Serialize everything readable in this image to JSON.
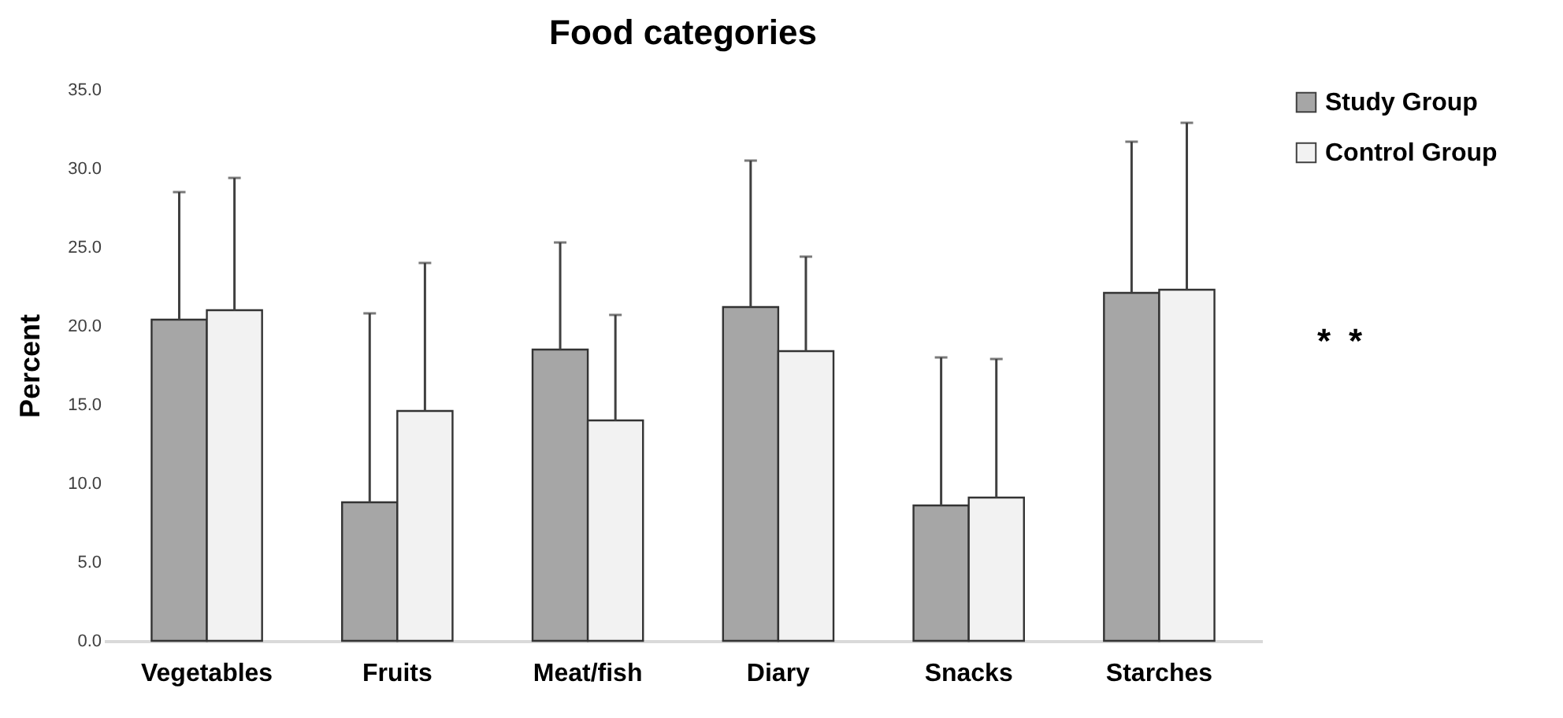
{
  "chart_data": {
    "type": "bar",
    "title": "Food categories",
    "ylabel": "Percent",
    "categories": [
      "Vegetables",
      "Fruits",
      "Meat/fish",
      "Diary",
      "Snacks",
      "Starches"
    ],
    "series": [
      {
        "name": "Study Group",
        "color": "#a6a6a6",
        "values": [
          20.4,
          8.8,
          18.5,
          21.2,
          8.6,
          22.1
        ],
        "errors": [
          [
            20.4,
            28.5
          ],
          [
            8.8,
            20.8
          ],
          [
            18.5,
            25.3
          ],
          [
            21.2,
            30.5
          ],
          [
            8.6,
            18.0
          ],
          [
            22.1,
            31.7
          ]
        ]
      },
      {
        "name": "Control Group",
        "color": "#f2f2f2",
        "values": [
          21.0,
          14.6,
          14.0,
          18.4,
          9.1,
          22.3
        ],
        "errors": [
          [
            21.0,
            29.4
          ],
          [
            14.6,
            24.0
          ],
          [
            14.0,
            20.7
          ],
          [
            18.4,
            24.4
          ],
          [
            9.1,
            17.9
          ],
          [
            22.3,
            32.9
          ]
        ]
      }
    ],
    "ylim": [
      0,
      35
    ],
    "yticks": [
      {
        "value": 0,
        "label": "0.0"
      },
      {
        "value": 5,
        "label": "5.0"
      },
      {
        "value": 10,
        "label": "10.0"
      },
      {
        "value": 15,
        "label": "15.0"
      },
      {
        "value": 20,
        "label": "20.0"
      },
      {
        "value": 25,
        "label": "25.0"
      },
      {
        "value": 30,
        "label": "30.0"
      },
      {
        "value": 35,
        "label": "35.0"
      }
    ],
    "annotations": [
      "*",
      "*"
    ],
    "legend": "right",
    "grid": false
  }
}
